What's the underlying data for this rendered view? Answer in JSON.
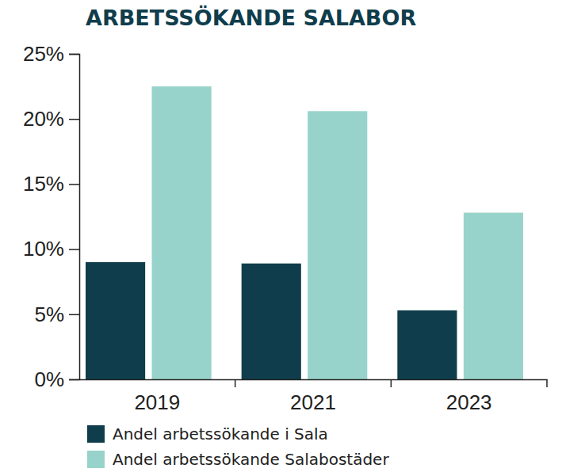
{
  "chart_data": {
    "type": "bar",
    "title": "ARBETSSÖKANDE SALABOR",
    "categories": [
      "2019",
      "2021",
      "2023"
    ],
    "series": [
      {
        "name": "Andel arbetssökande i Sala",
        "color": "#0f3d4c",
        "values": [
          9.0,
          8.9,
          5.3
        ]
      },
      {
        "name": "Andel arbetssökande Salabostäder",
        "color": "#98d3cb",
        "values": [
          22.5,
          20.6,
          12.8
        ]
      }
    ],
    "ylim": [
      0,
      25
    ],
    "yticks": [
      {
        "value": 0,
        "label": "0%"
      },
      {
        "value": 5,
        "label": "5%"
      },
      {
        "value": 10,
        "label": "10%"
      },
      {
        "value": 15,
        "label": "15%"
      },
      {
        "value": 20,
        "label": "20%"
      },
      {
        "value": 25,
        "label": "25%"
      }
    ],
    "grid": false,
    "legend": "bottom"
  }
}
